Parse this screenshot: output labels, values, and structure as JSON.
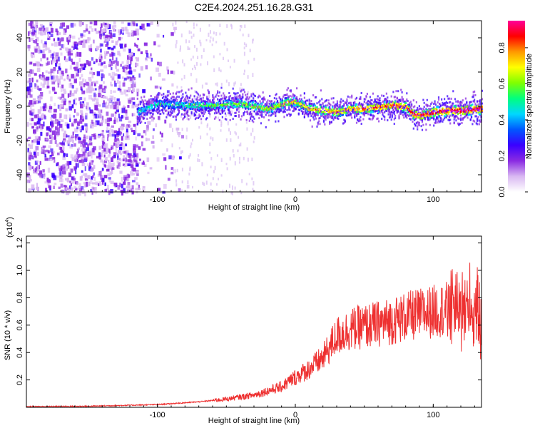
{
  "title": "C2E4.2024.251.16.28.G31",
  "chart_data": [
    {
      "type": "heatmap",
      "xlabel": "Height of straight line (km)",
      "ylabel": "Frequency (Hz)",
      "xlim": [
        -195,
        135
      ],
      "ylim": [
        -50,
        50
      ],
      "x_ticks": [
        -100,
        0,
        100
      ],
      "y_ticks": [
        -40,
        -20,
        0,
        20,
        40
      ],
      "colorbar": {
        "label": "Normalized spectral amplitude",
        "range": [
          0,
          0.95
        ],
        "ticks": [
          0.0,
          0.2,
          0.4,
          0.6,
          0.8
        ],
        "colors": [
          "#ffffff",
          "#d9b8f2",
          "#8a2be2",
          "#3a00ff",
          "#0057ff",
          "#00d7ff",
          "#00ff7f",
          "#7fff00",
          "#ffff00",
          "#ff9900",
          "#ff0000",
          "#ff0099"
        ]
      },
      "centerline": {
        "x": [
          -115,
          -100,
          -80,
          -60,
          -40,
          -20,
          -5,
          0,
          10,
          20,
          30,
          40,
          50,
          60,
          70,
          80,
          85,
          90,
          100,
          110,
          120,
          135
        ],
        "freq": [
          -3,
          2,
          1,
          1,
          2,
          -1,
          3,
          3,
          -1,
          -2,
          -3,
          -1,
          -1,
          0,
          1,
          0,
          -4,
          -5,
          -3,
          -2,
          -2,
          -1
        ]
      }
    },
    {
      "type": "line",
      "xlabel": "Height of straight line (km)",
      "ylabel": "SNR (10 * v/v)",
      "y_multiplier": "(x10",
      "y_multiplier_exp": "4",
      "xlim": [
        -195,
        135
      ],
      "ylim": [
        0,
        1.25
      ],
      "x_ticks": [
        -100,
        0,
        100
      ],
      "y_ticks": [
        0.2,
        0.4,
        0.6,
        0.8,
        1.0,
        1.2
      ],
      "color": "#ee3030",
      "envelope": {
        "x": [
          -195,
          -150,
          -100,
          -70,
          -50,
          -30,
          -10,
          0,
          10,
          20,
          25,
          30,
          40,
          50,
          60,
          70,
          80,
          90,
          100,
          110,
          120,
          125,
          130,
          135
        ],
        "y": [
          0.005,
          0.008,
          0.02,
          0.04,
          0.06,
          0.09,
          0.15,
          0.22,
          0.28,
          0.36,
          0.44,
          0.52,
          0.57,
          0.59,
          0.61,
          0.63,
          0.66,
          0.68,
          0.7,
          0.72,
          0.73,
          0.72,
          0.7,
          0.6
        ]
      }
    }
  ]
}
